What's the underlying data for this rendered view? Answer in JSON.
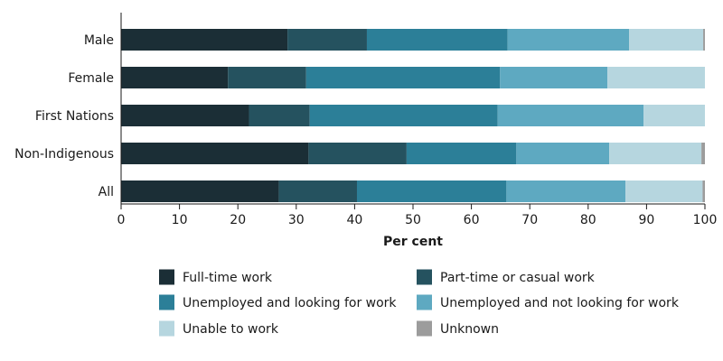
{
  "chart_data": {
    "type": "bar",
    "orientation": "horizontal",
    "stacked": true,
    "title": "",
    "xlabel": "Per cent",
    "ylabel": "",
    "xlim": [
      0,
      100
    ],
    "xticks": [
      0,
      10,
      20,
      30,
      40,
      50,
      60,
      70,
      80,
      90,
      100
    ],
    "grid": false,
    "legend_position": "bottom",
    "categories": [
      "Male",
      "Female",
      "First Nations",
      "Non-Indigenous",
      "All"
    ],
    "series": [
      {
        "name": "Full-time work",
        "color": "#1b2e36",
        "values": [
          28.5,
          18.3,
          21.9,
          32.1,
          27.0
        ]
      },
      {
        "name": "Part-time or casual work",
        "color": "#25525f",
        "values": [
          13.6,
          13.4,
          10.4,
          16.8,
          13.4
        ]
      },
      {
        "name": "Unemployed and looking for work",
        "color": "#2c7f98",
        "values": [
          24.1,
          33.2,
          32.2,
          18.8,
          25.6
        ]
      },
      {
        "name": "Unemployed and not looking for work",
        "color": "#5ea9c1",
        "values": [
          20.8,
          18.4,
          25.0,
          15.9,
          20.4
        ]
      },
      {
        "name": "Unable to work",
        "color": "#b6d6df",
        "values": [
          12.7,
          16.7,
          10.5,
          15.8,
          13.2
        ]
      },
      {
        "name": "Unknown",
        "color": "#9c9c9c",
        "values": [
          0.3,
          0.0,
          0.0,
          0.6,
          0.4
        ]
      }
    ]
  }
}
